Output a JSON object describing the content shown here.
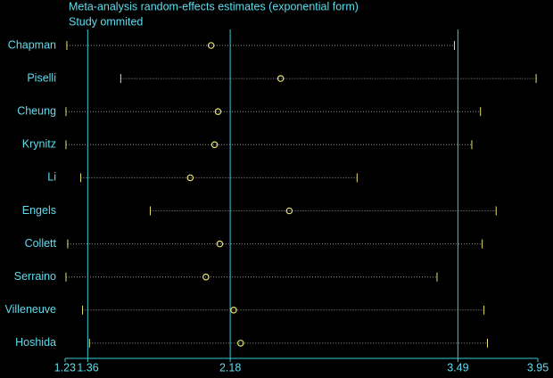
{
  "chart_data": {
    "type": "metainf",
    "title": "Meta-analysis random-effects estimates (exponential form)",
    "subtitle": "Study ommited",
    "categories": [
      "Chapman",
      "Piselli",
      "Cheung",
      "Krynitz",
      "Li",
      "Engels",
      "Collett",
      "Serraino",
      "Villeneuve",
      "Hoshida"
    ],
    "estimates": [
      2.07,
      2.47,
      2.11,
      2.09,
      1.95,
      2.52,
      2.12,
      2.04,
      2.2,
      2.24
    ],
    "lower": [
      1.24,
      1.55,
      1.235,
      1.235,
      1.32,
      1.72,
      1.245,
      1.235,
      1.33,
      1.37
    ],
    "upper": [
      3.47,
      3.94,
      3.62,
      3.57,
      2.91,
      3.71,
      3.63,
      3.37,
      3.64,
      3.66
    ],
    "reference_lines": [
      1.36,
      2.18,
      3.49
    ],
    "xlim": [
      1.23,
      3.95
    ],
    "xticks": [
      1.23,
      1.36,
      2.18,
      3.49,
      3.95
    ],
    "color": "#e8e070"
  }
}
